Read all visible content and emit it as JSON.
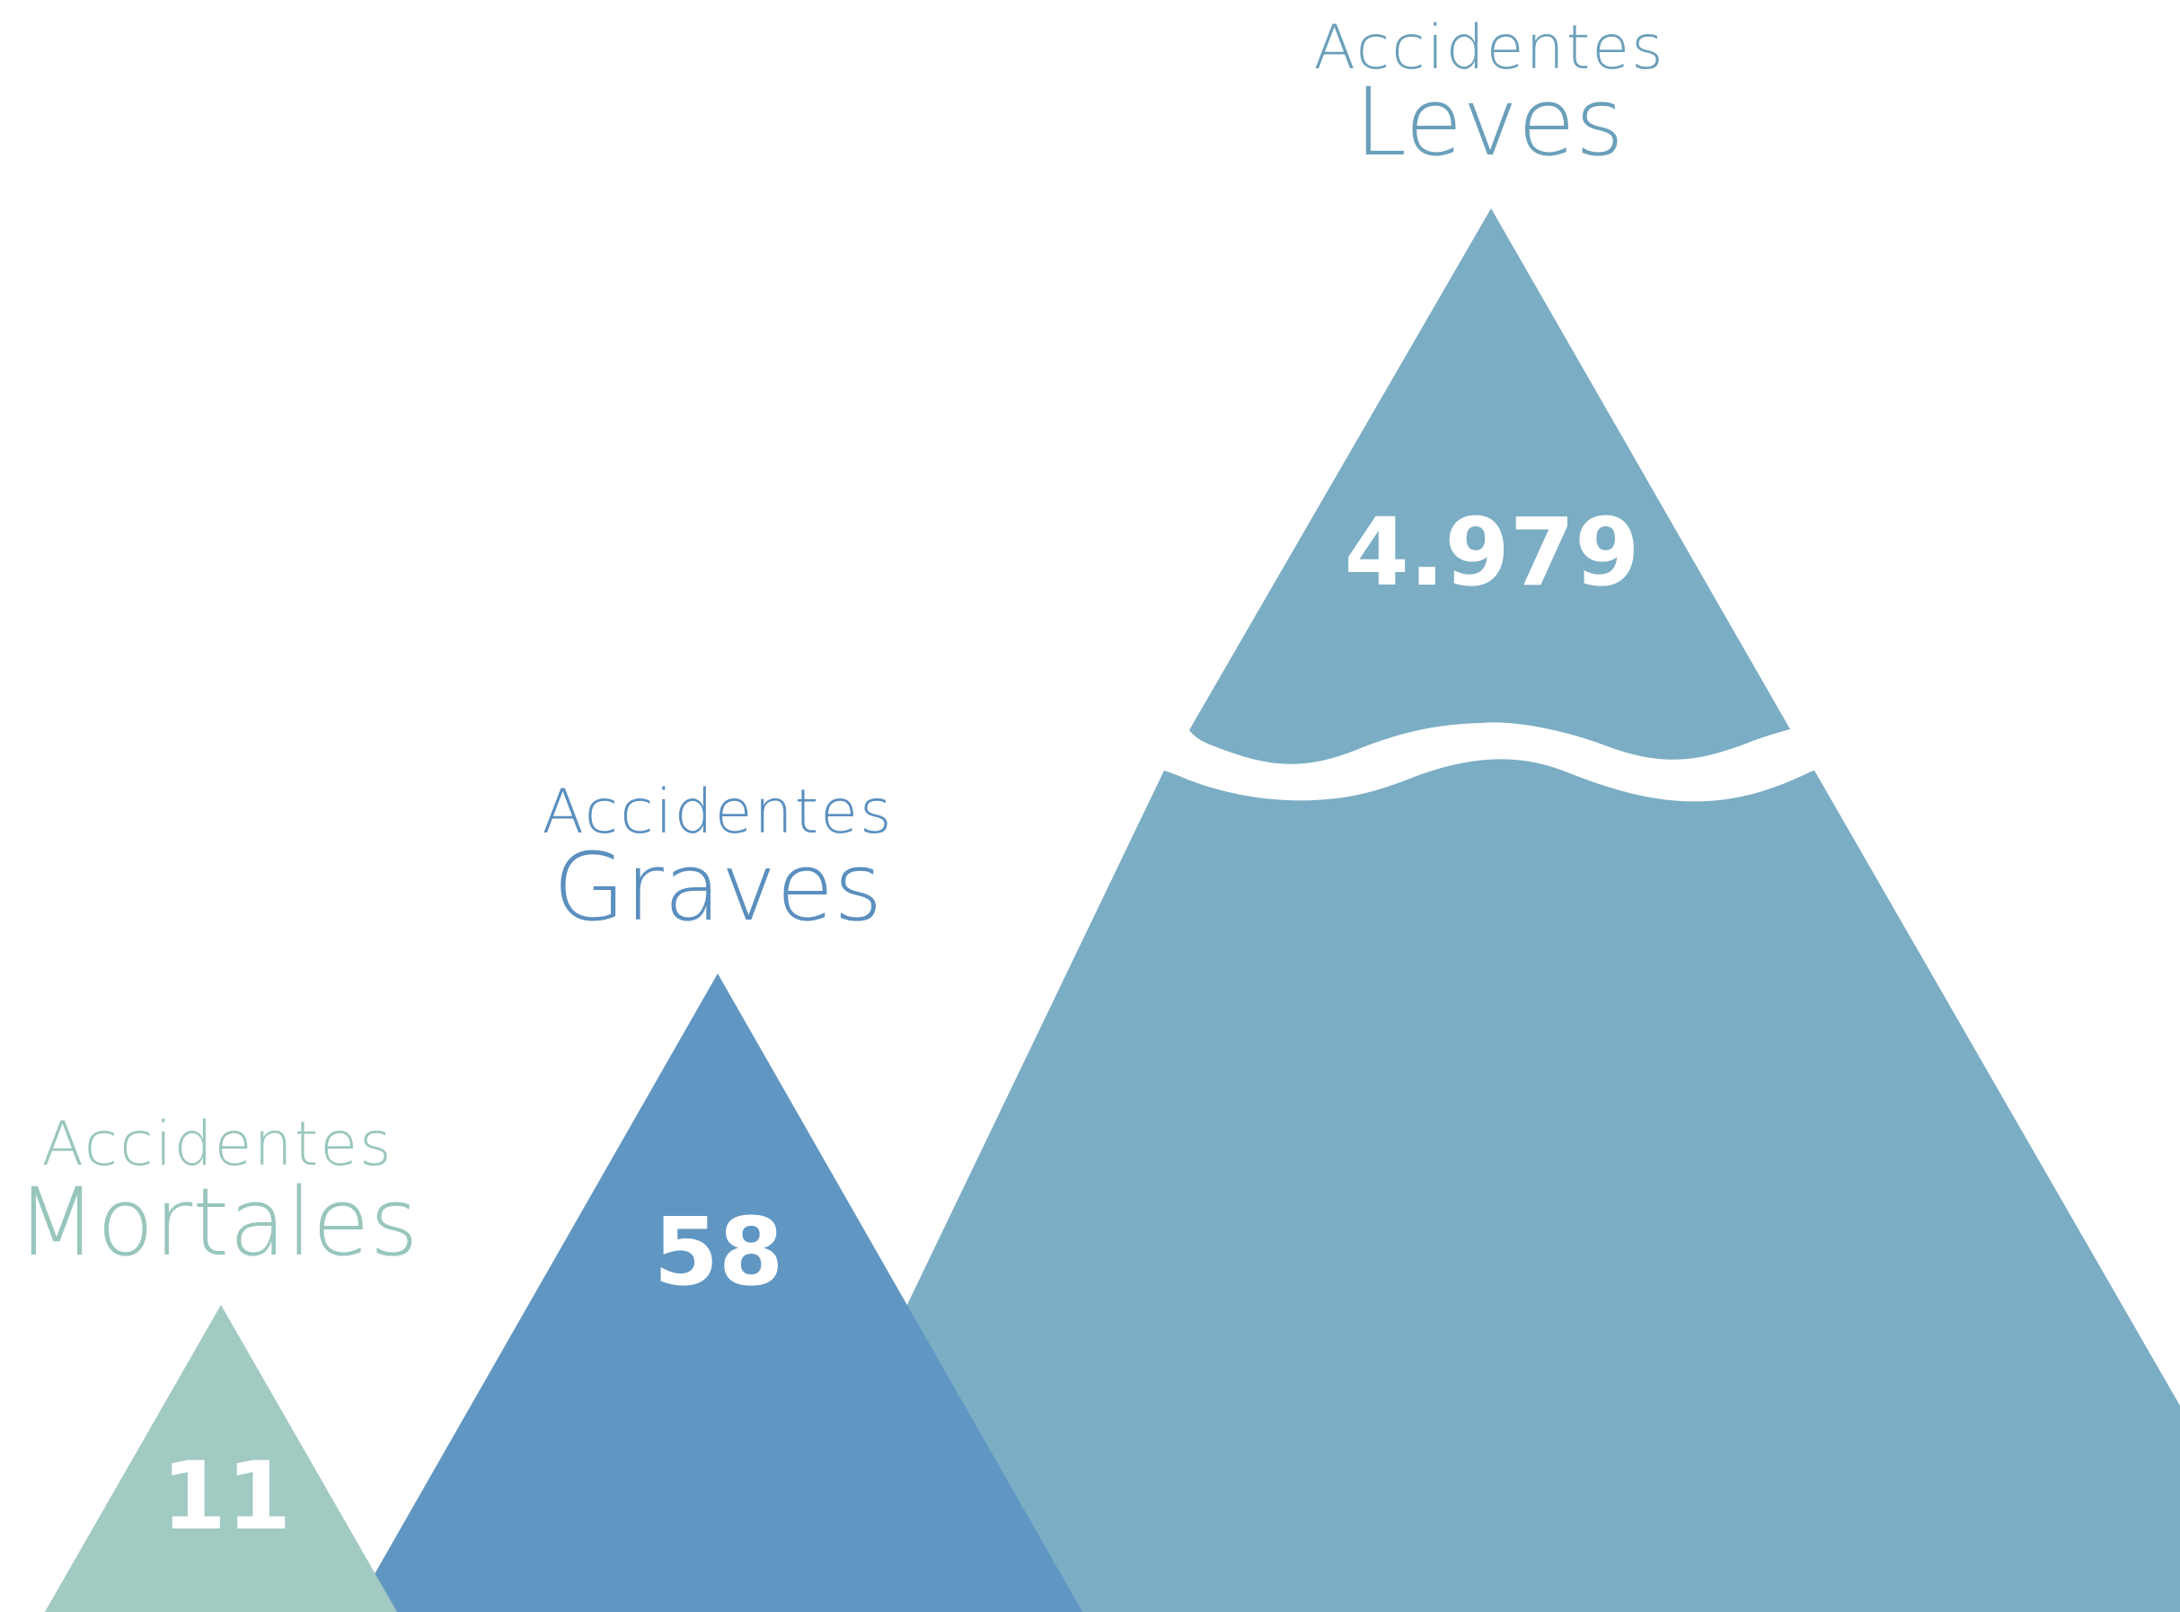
{
  "chart_data": {
    "type": "bar",
    "style": "triangles (mountains)",
    "series": [
      {
        "id": "leves",
        "label_top": "Accidentes",
        "label_main": "Leves",
        "value": 4979,
        "value_text": "4.979",
        "color": "#7badc4",
        "axis_break": true
      },
      {
        "id": "graves",
        "label_top": "Accidentes",
        "label_main": "Graves",
        "value": 58,
        "value_text": "58",
        "color": "#6096c2",
        "axis_break": false
      },
      {
        "id": "mortales",
        "label_top": "Accidentes",
        "label_main": "Mortales",
        "value": 11,
        "value_text": "11",
        "color": "#a1cac3",
        "axis_break": false
      }
    ],
    "label_color_leves": "#6a9fba",
    "label_color_graves": "#5a8fbf",
    "label_color_mortales": "#98c6bd",
    "value_color": "#ffffff"
  }
}
